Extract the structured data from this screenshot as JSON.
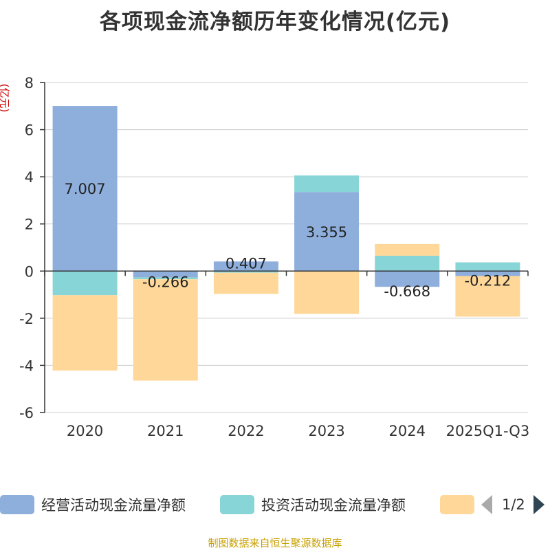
{
  "chart_data": {
    "type": "bar",
    "stacked": true,
    "title": "各项现金流净额历年变化情况(亿元)",
    "ylabel": "(亿元)",
    "categories": [
      "2020",
      "2021",
      "2022",
      "2023",
      "2024",
      "2025Q1-Q3"
    ],
    "ylim": [
      -6,
      8
    ],
    "yticks": [
      -6,
      -4,
      -2,
      0,
      2,
      4,
      6,
      8
    ],
    "series": [
      {
        "name": "经营活动现金流量净额",
        "color": "#8eaedc",
        "values": [
          7.007,
          -0.266,
          0.407,
          3.355,
          -0.668,
          -0.212
        ]
      },
      {
        "name": "投资活动现金流量净额",
        "color": "#88d5d7",
        "values": [
          -1.02,
          -0.08,
          -0.07,
          0.7,
          0.65,
          0.37
        ]
      },
      {
        "name": "",
        "color": "#ffd899",
        "values": [
          -3.2,
          -4.3,
          -0.9,
          -1.82,
          0.5,
          -1.72
        ]
      }
    ],
    "data_labels": [
      "7.007",
      "-0.266",
      "0.407",
      "3.355",
      "-0.668",
      "-0.212"
    ]
  },
  "legend": {
    "items": [
      "经营活动现金流量净额",
      "投资活动现金流量净额",
      ""
    ],
    "page": "1/2"
  },
  "source": "制图数据来自恒生聚源数据库",
  "icons": {
    "prev": "triangle-left-icon",
    "next": "triangle-right-icon"
  }
}
